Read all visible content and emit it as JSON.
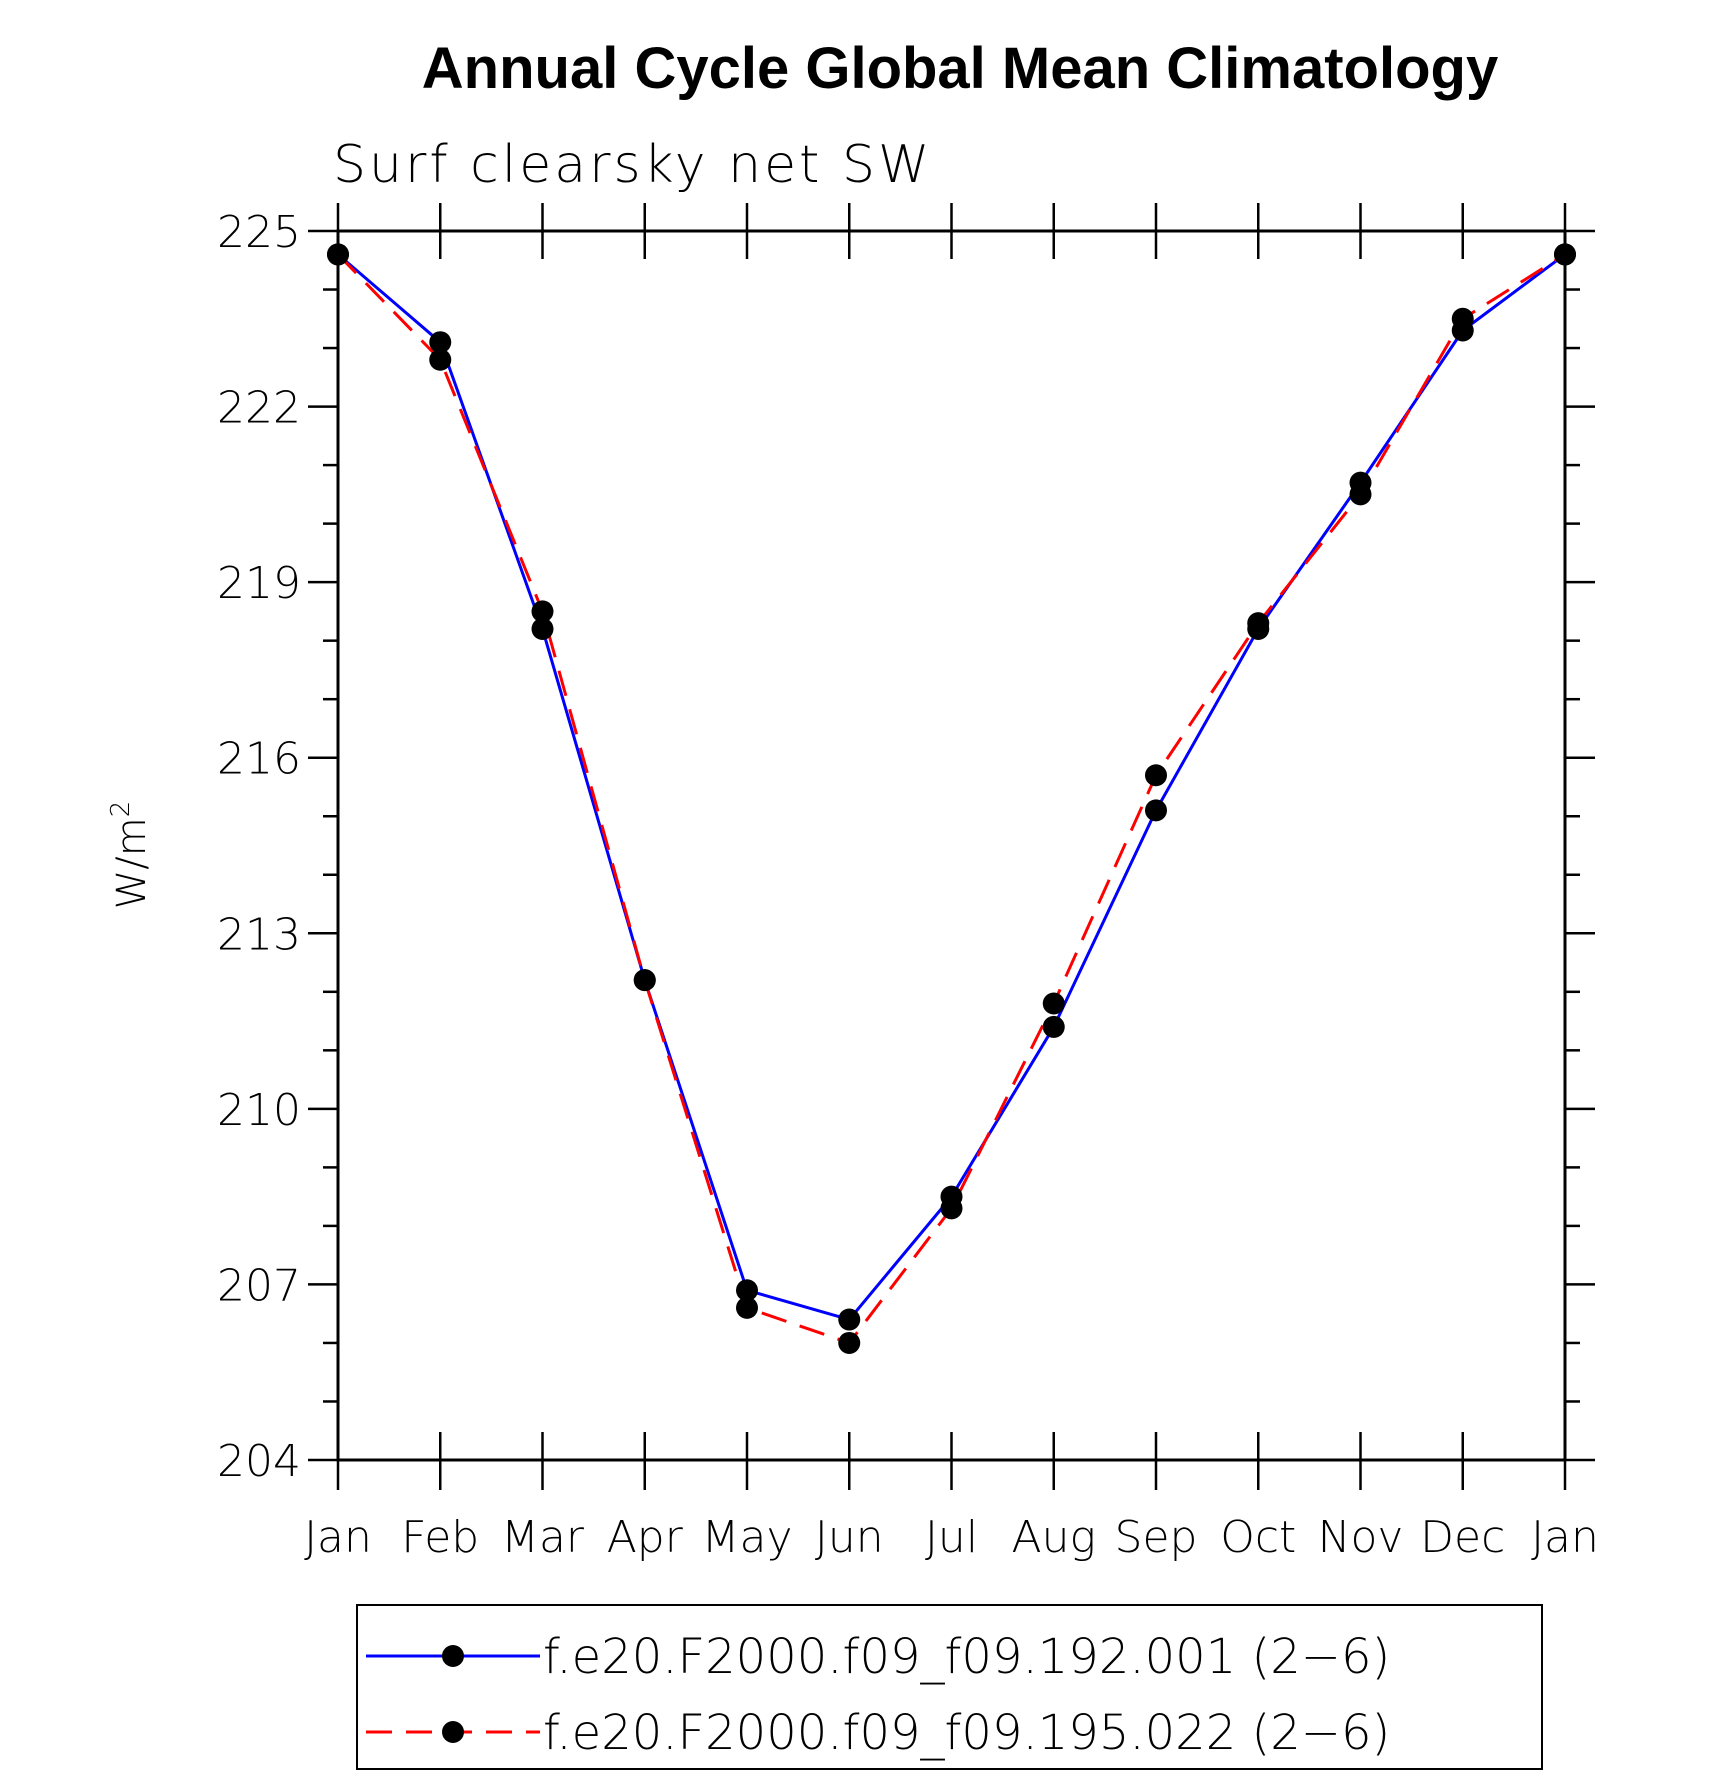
{
  "chart_data": {
    "type": "line",
    "title": "Annual Cycle Global Mean Climatology",
    "subtitle": "Surf clearsky net SW",
    "xlabel": "",
    "ylabel": "W/m",
    "ylabel_superscript": "2",
    "categories": [
      "Jan",
      "Feb",
      "Mar",
      "Apr",
      "May",
      "Jun",
      "Jul",
      "Aug",
      "Sep",
      "Oct",
      "Nov",
      "Dec",
      "Jan"
    ],
    "ylim": [
      204,
      225
    ],
    "yticks": [
      204,
      207,
      210,
      213,
      216,
      219,
      222,
      225
    ],
    "grid": false,
    "legend_position": "bottom",
    "series": [
      {
        "name": "f.e20.F2000.f09_f09.192.001 (2−6)",
        "color": "#0000ff",
        "dash": "solid",
        "marker": "filled-circle",
        "values": [
          224.6,
          223.1,
          218.2,
          212.2,
          206.9,
          206.4,
          208.5,
          211.4,
          215.1,
          218.2,
          220.7,
          223.3,
          224.6
        ]
      },
      {
        "name": "f.e20.F2000.f09_f09.195.022 (2−6)",
        "color": "#ff0000",
        "dash": "dashed",
        "marker": "filled-circle",
        "values": [
          224.6,
          222.8,
          218.5,
          212.2,
          206.6,
          206.0,
          208.3,
          211.8,
          215.7,
          218.3,
          220.5,
          223.5,
          224.6
        ]
      }
    ]
  }
}
